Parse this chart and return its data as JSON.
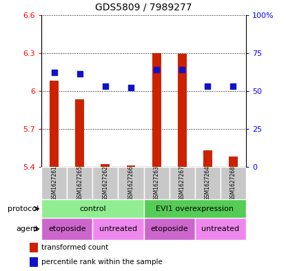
{
  "title": "GDS5809 / 7989277",
  "samples": [
    "GSM1627261",
    "GSM1627265",
    "GSM1627262",
    "GSM1627266",
    "GSM1627263",
    "GSM1627267",
    "GSM1627264",
    "GSM1627268"
  ],
  "transformed_counts": [
    6.08,
    5.93,
    5.42,
    5.41,
    6.3,
    6.29,
    5.53,
    5.48
  ],
  "percentile_ranks": [
    62,
    61,
    53,
    52,
    64,
    64,
    53,
    53
  ],
  "ylim_left": [
    5.4,
    6.6
  ],
  "ylim_right": [
    0,
    100
  ],
  "yticks_left": [
    5.4,
    5.7,
    6.0,
    6.3,
    6.6
  ],
  "yticks_right": [
    0,
    25,
    50,
    75,
    100
  ],
  "ytick_labels_left": [
    "5.4",
    "5.7",
    "6",
    "6.3",
    "6.6"
  ],
  "ytick_labels_right": [
    "0",
    "25",
    "50",
    "75",
    "100%"
  ],
  "bar_color": "#cc2200",
  "dot_color": "#1111cc",
  "bar_width": 0.35,
  "dot_size": 30,
  "protocol_row_color": "#90ee90",
  "agent_etoposide_color": "#cc66cc",
  "agent_untreated_color": "#ee88ee",
  "sample_box_color": "#c8c8c8",
  "legend_items": [
    {
      "label": "transformed count",
      "color": "#cc2200"
    },
    {
      "label": "percentile rank within the sample",
      "color": "#1111cc"
    }
  ]
}
